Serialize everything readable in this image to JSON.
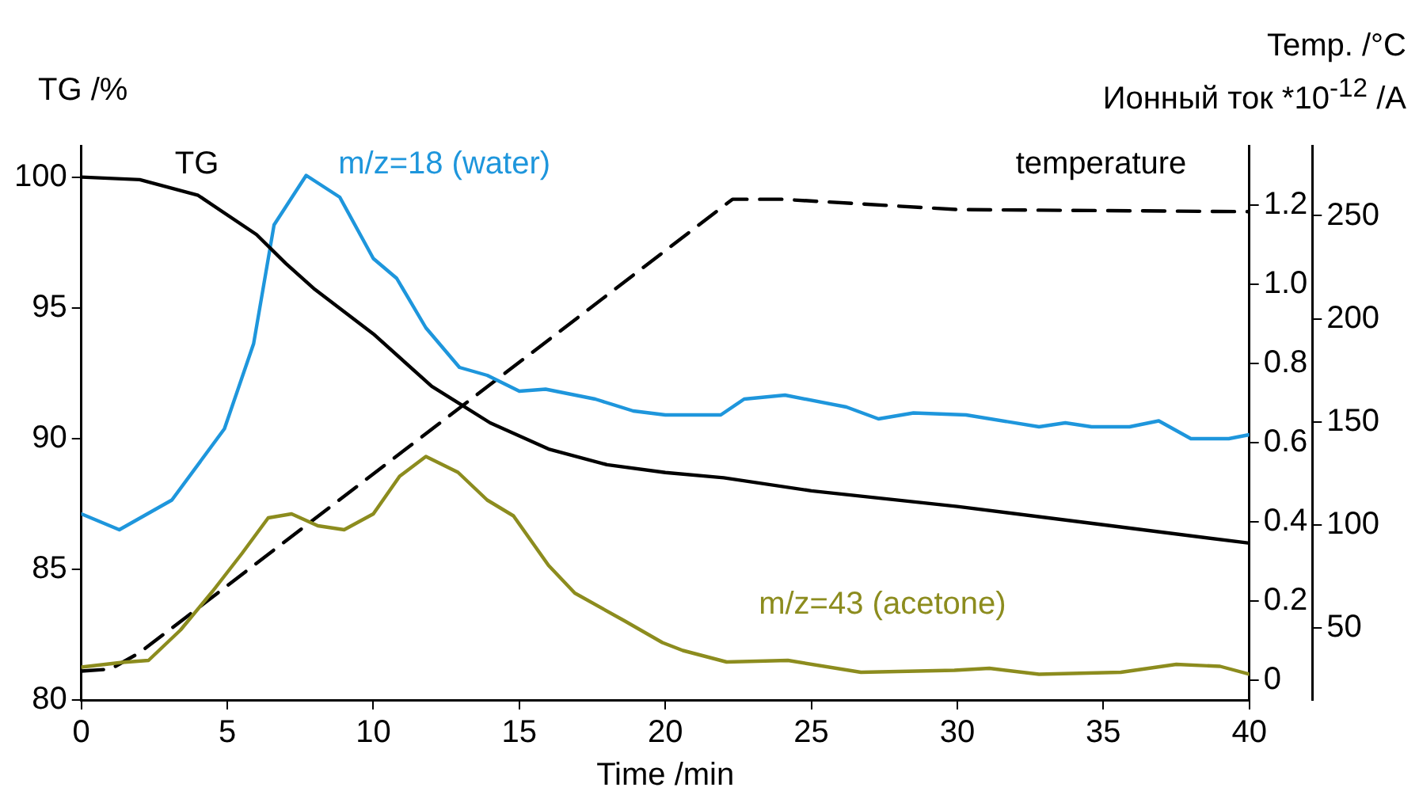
{
  "chart_data": {
    "type": "line",
    "xlabel": "Time /min",
    "ylabel": "TG /%",
    "y2label": "Ионный ток *10$^{-12}$ /A",
    "y3label": "Temp. /°C",
    "xlim": [
      0,
      40
    ],
    "xticks": [
      0,
      5,
      10,
      15,
      20,
      25,
      30,
      35,
      40
    ],
    "ylim": [
      80,
      101.2
    ],
    "yticks": [
      80,
      85,
      90,
      95,
      100
    ],
    "y2lim": [
      -0.05,
      1.35
    ],
    "y2ticks": [
      0,
      0.2,
      0.4,
      0.6,
      0.8,
      {
        "value": 1,
        "label": "1.0"
      },
      1.2
    ],
    "y3lim": [
      15,
      284
    ],
    "y3ticks": [
      50,
      100,
      150,
      200,
      250
    ],
    "grid": false,
    "legend": false,
    "marker": "none",
    "series": [
      {
        "name": "TG",
        "color": "#000000",
        "line_style": "solid",
        "x": [
          0,
          2,
          4,
          6,
          7,
          8,
          10,
          12,
          14,
          16,
          18,
          20,
          22,
          25,
          30,
          35,
          40
        ],
        "values": [
          100,
          99.9,
          99.3,
          97.8,
          96.7,
          95.7,
          94,
          92,
          90.6,
          89.6,
          89,
          88.7,
          88.5,
          88,
          87.4,
          86.7,
          86
        ]
      },
      {
        "name": "m/z=18 (water)",
        "color": "#1e96dc",
        "axis": "y2",
        "line_style": "solid",
        "x": [
          0,
          1.3,
          3.1,
          4.9,
          5.9,
          6.6,
          7.7,
          8.85,
          10,
          10.8,
          11.8,
          12.95,
          13.9,
          15,
          15.9,
          17.6,
          18.9,
          20,
          21.9,
          22.7,
          24.1,
          26.2,
          27.3,
          28.5,
          30.3,
          32.8,
          33.7,
          34.6,
          35.9,
          36.9,
          38,
          39.3,
          40
        ],
        "values": [
          0.42,
          0.38,
          0.455,
          0.635,
          0.85,
          1.15,
          1.275,
          1.22,
          1.065,
          1.015,
          0.89,
          0.79,
          0.77,
          0.73,
          0.735,
          0.71,
          0.68,
          0.67,
          0.67,
          0.71,
          0.72,
          0.69,
          0.66,
          0.675,
          0.67,
          0.64,
          0.65,
          0.64,
          0.64,
          0.655,
          0.61,
          0.61,
          0.62
        ]
      },
      {
        "name": "m/z=43 (acetone)",
        "color": "#8c8c1e",
        "axis": "y2",
        "line_style": "solid",
        "x": [
          0,
          1.4,
          2.3,
          3.4,
          4.5,
          5.5,
          6.4,
          7.2,
          8.1,
          9,
          10,
          10.9,
          11.8,
          12.9,
          13.9,
          14.8,
          16,
          16.9,
          18.6,
          19.9,
          20.6,
          22.1,
          24.2,
          26.7,
          29.9,
          31.1,
          32.8,
          35.6,
          37.5,
          39,
          40
        ],
        "values": [
          0.033,
          0.045,
          0.05,
          0.127,
          0.225,
          0.32,
          0.41,
          0.42,
          0.39,
          0.38,
          0.42,
          0.515,
          0.565,
          0.525,
          0.455,
          0.415,
          0.29,
          0.22,
          0.15,
          0.095,
          0.075,
          0.046,
          0.05,
          0.02,
          0.025,
          0.03,
          0.015,
          0.02,
          0.04,
          0.035,
          0.015
        ]
      },
      {
        "name": "temperature",
        "color": "#000000",
        "axis": "y3",
        "line_style": "dashed",
        "x": [
          0,
          1,
          2,
          22.3,
          24,
          30,
          40
        ],
        "values": [
          29,
          30,
          38,
          258,
          258,
          253,
          252
        ]
      }
    ]
  }
}
